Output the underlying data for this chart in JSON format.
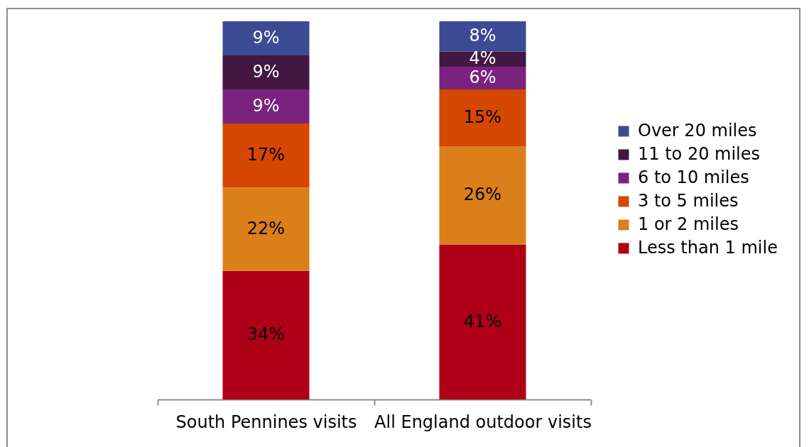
{
  "chart_data": {
    "type": "bar",
    "stacked": true,
    "legend": "right",
    "categories": [
      "South Pennines visits",
      "All England outdoor visits"
    ],
    "series": [
      {
        "name": "Less than 1 mile",
        "color": "#ae0016",
        "values": [
          34,
          41
        ],
        "value_labels": [
          "34%",
          "41%"
        ]
      },
      {
        "name": "1 or 2 miles",
        "color": "#db7f1a",
        "values": [
          22,
          26
        ],
        "value_labels": [
          "22%",
          "26%"
        ]
      },
      {
        "name": "3 to 5 miles",
        "color": "#d54702",
        "values": [
          17,
          15
        ],
        "value_labels": [
          "17%",
          "15%"
        ]
      },
      {
        "name": "6 to 10 miles",
        "color": "#7a237e",
        "values": [
          9,
          6
        ],
        "value_labels": [
          "9%",
          "6%"
        ]
      },
      {
        "name": "11 to 20 miles",
        "color": "#421843",
        "values": [
          9,
          4
        ],
        "value_labels": [
          "9%",
          "4%"
        ]
      },
      {
        "name": "Over 20 miles",
        "color": "#3d4b94",
        "values": [
          9,
          8
        ],
        "value_labels": [
          "9%",
          "8%"
        ]
      }
    ]
  }
}
